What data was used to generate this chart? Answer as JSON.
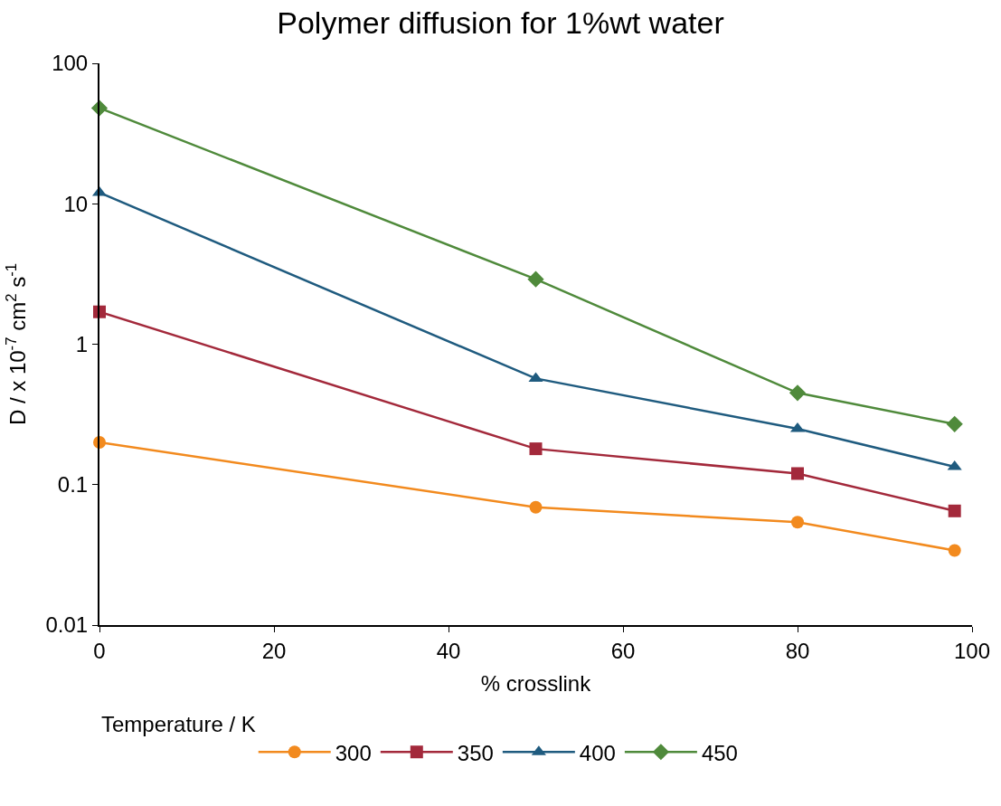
{
  "chart_data": {
    "type": "line",
    "title": "Polymer diffusion for 1%wt water",
    "xlabel": "% crosslink",
    "ylabel": "D / x 10$^{-7}$ cm$^{2}$ s$^{-1}$",
    "legend_title": "Temperature / K",
    "x": [
      0,
      50,
      80,
      98
    ],
    "series": [
      {
        "name": "300",
        "color": "#f28a1e",
        "marker": "circle",
        "values": [
          0.2,
          0.069,
          0.054,
          0.034
        ]
      },
      {
        "name": "350",
        "color": "#a3293b",
        "marker": "square",
        "values": [
          1.7,
          0.18,
          0.12,
          0.065
        ]
      },
      {
        "name": "400",
        "color": "#1f5b7f",
        "marker": "triangle",
        "values": [
          12,
          0.57,
          0.25,
          0.134
        ]
      },
      {
        "name": "450",
        "color": "#4f8a3b",
        "marker": "diamond",
        "values": [
          48,
          2.9,
          0.45,
          0.27
        ]
      }
    ],
    "log": "y",
    "xlim": [
      0,
      100
    ],
    "xticks": [
      0,
      20,
      40,
      60,
      80,
      100
    ],
    "ylim": [
      0.01,
      100
    ],
    "yticks": [
      0.01,
      0.1,
      1,
      10,
      100
    ],
    "legend": "bottom",
    "line_style": "solid"
  }
}
